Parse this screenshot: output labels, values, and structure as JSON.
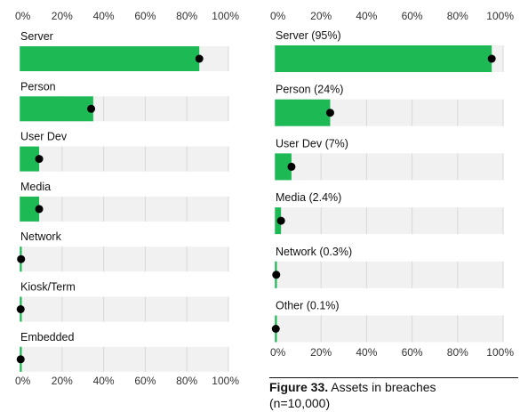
{
  "chart_data": [
    {
      "type": "bar",
      "orientation": "horizontal",
      "categories": [
        "Server",
        "Person",
        "User Dev",
        "Media",
        "Network",
        "Kiosk/Term",
        "Embedded"
      ],
      "values": [
        86,
        35,
        9,
        9,
        0.3,
        0.1,
        0.1
      ],
      "dot_values": [
        86,
        34,
        9,
        9,
        0.3,
        0.1,
        0.1
      ],
      "xlim": [
        0,
        100
      ],
      "xticks": [
        "0%",
        "20%",
        "40%",
        "60%",
        "80%",
        "100%"
      ],
      "axis_labels_top": true,
      "axis_labels_bottom": true,
      "grid": true,
      "bar_color": "#1db954",
      "track_color": "#f1f1f1",
      "dot_color": "#000000"
    },
    {
      "type": "bar",
      "orientation": "horizontal",
      "categories": [
        "Server (95%)",
        "Person (24%)",
        "User Dev (7%)",
        "Media (2.4%)",
        "Network (0.3%)",
        "Other (0.1%)"
      ],
      "values": [
        95,
        24,
        7,
        2.4,
        0.3,
        0.1
      ],
      "dot_values": [
        95,
        24,
        7,
        2.4,
        0.3,
        0.1
      ],
      "xlim": [
        0,
        100
      ],
      "xticks": [
        "0%",
        "20%",
        "40%",
        "60%",
        "80%",
        "100%"
      ],
      "axis_labels_top": true,
      "axis_labels_bottom": true,
      "grid": true,
      "bar_color": "#1db954",
      "track_color": "#f1f1f1",
      "dot_color": "#000000"
    }
  ],
  "caption": {
    "figure_label": "Figure 33.",
    "title": " Assets in breaches",
    "subtitle": "(n=10,000)"
  }
}
